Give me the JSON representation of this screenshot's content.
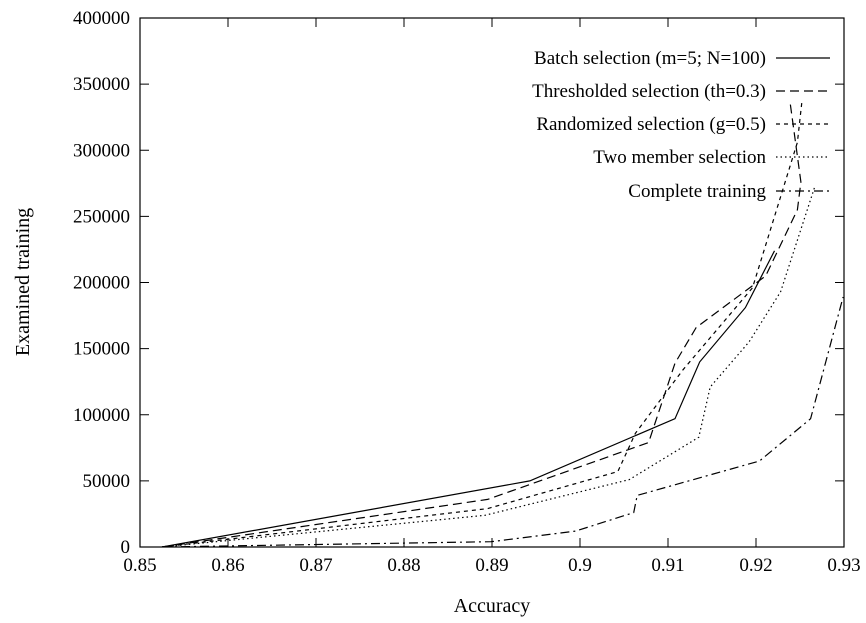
{
  "chart_data": {
    "type": "line",
    "title": "",
    "xlabel": "Accuracy",
    "ylabel": "Examined training",
    "xlim": [
      0.85,
      0.93
    ],
    "ylim": [
      0,
      400000
    ],
    "xticks": [
      {
        "value": 0.85,
        "label": "0.85"
      },
      {
        "value": 0.86,
        "label": "0.86"
      },
      {
        "value": 0.87,
        "label": "0.87"
      },
      {
        "value": 0.88,
        "label": "0.88"
      },
      {
        "value": 0.89,
        "label": "0.89"
      },
      {
        "value": 0.9,
        "label": "0.9"
      },
      {
        "value": 0.91,
        "label": "0.91"
      },
      {
        "value": 0.92,
        "label": "0.92"
      },
      {
        "value": 0.93,
        "label": "0.93"
      }
    ],
    "yticks": [
      {
        "value": 0,
        "label": "0"
      },
      {
        "value": 50000,
        "label": "50000"
      },
      {
        "value": 100000,
        "label": "100000"
      },
      {
        "value": 150000,
        "label": "150000"
      },
      {
        "value": 200000,
        "label": "200000"
      },
      {
        "value": 250000,
        "label": "250000"
      },
      {
        "value": 300000,
        "label": "300000"
      },
      {
        "value": 350000,
        "label": "350000"
      },
      {
        "value": 400000,
        "label": "400000"
      }
    ],
    "grid": false,
    "legend_position": "top-right",
    "series": [
      {
        "name": "Batch selection (m=5; N=100)",
        "dash": "solid",
        "points": [
          [
            0.8525,
            0
          ],
          [
            0.8943,
            50000
          ],
          [
            0.9108,
            97000
          ],
          [
            0.9136,
            140000
          ],
          [
            0.9188,
            181000
          ],
          [
            0.9221,
            224000
          ]
        ]
      },
      {
        "name": "Thresholded selection (th=0.3)",
        "dash": "dashed",
        "points": [
          [
            0.8525,
            0
          ],
          [
            0.8895,
            36000
          ],
          [
            0.9078,
            79000
          ],
          [
            0.9108,
            139000
          ],
          [
            0.9132,
            166000
          ],
          [
            0.9211,
            205000
          ],
          [
            0.9247,
            255000
          ],
          [
            0.9251,
            276000
          ],
          [
            0.9239,
            335000
          ]
        ]
      },
      {
        "name": "Randomized selection (g=0.5)",
        "dash": "short-dash",
        "points": [
          [
            0.8525,
            0
          ],
          [
            0.8895,
            29000
          ],
          [
            0.9043,
            57000
          ],
          [
            0.9063,
            86000
          ],
          [
            0.9117,
            134000
          ],
          [
            0.9196,
            196000
          ],
          [
            0.9247,
            306000
          ],
          [
            0.9252,
            336000
          ]
        ]
      },
      {
        "name": "Two member selection",
        "dash": "dotted",
        "points": [
          [
            0.8525,
            0
          ],
          [
            0.8892,
            24000
          ],
          [
            0.9056,
            51000
          ],
          [
            0.9135,
            83000
          ],
          [
            0.9148,
            121000
          ],
          [
            0.9192,
            155000
          ],
          [
            0.9228,
            193000
          ],
          [
            0.9267,
            273000
          ]
        ]
      },
      {
        "name": "Complete training",
        "dash": "dash-dot",
        "points": [
          [
            0.8525,
            0
          ],
          [
            0.8899,
            4000
          ],
          [
            0.8995,
            12000
          ],
          [
            0.9061,
            26000
          ],
          [
            0.9065,
            39000
          ],
          [
            0.9204,
            65000
          ],
          [
            0.9262,
            97000
          ],
          [
            0.9299,
            189000
          ]
        ]
      }
    ]
  }
}
